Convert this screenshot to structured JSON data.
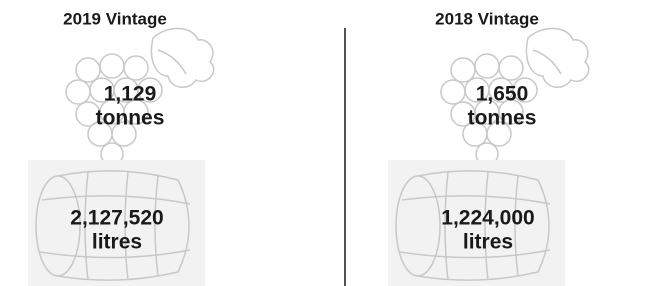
{
  "columns": [
    {
      "title": "2019 Vintage",
      "grapes": {
        "value": "1,129",
        "unit": "tonnes"
      },
      "wine": {
        "value": "2,127,520",
        "unit": "litres"
      }
    },
    {
      "title": "2018 Vintage",
      "grapes": {
        "value": "1,650",
        "unit": "tonnes"
      },
      "wine": {
        "value": "1,224,000",
        "unit": "litres"
      }
    }
  ]
}
